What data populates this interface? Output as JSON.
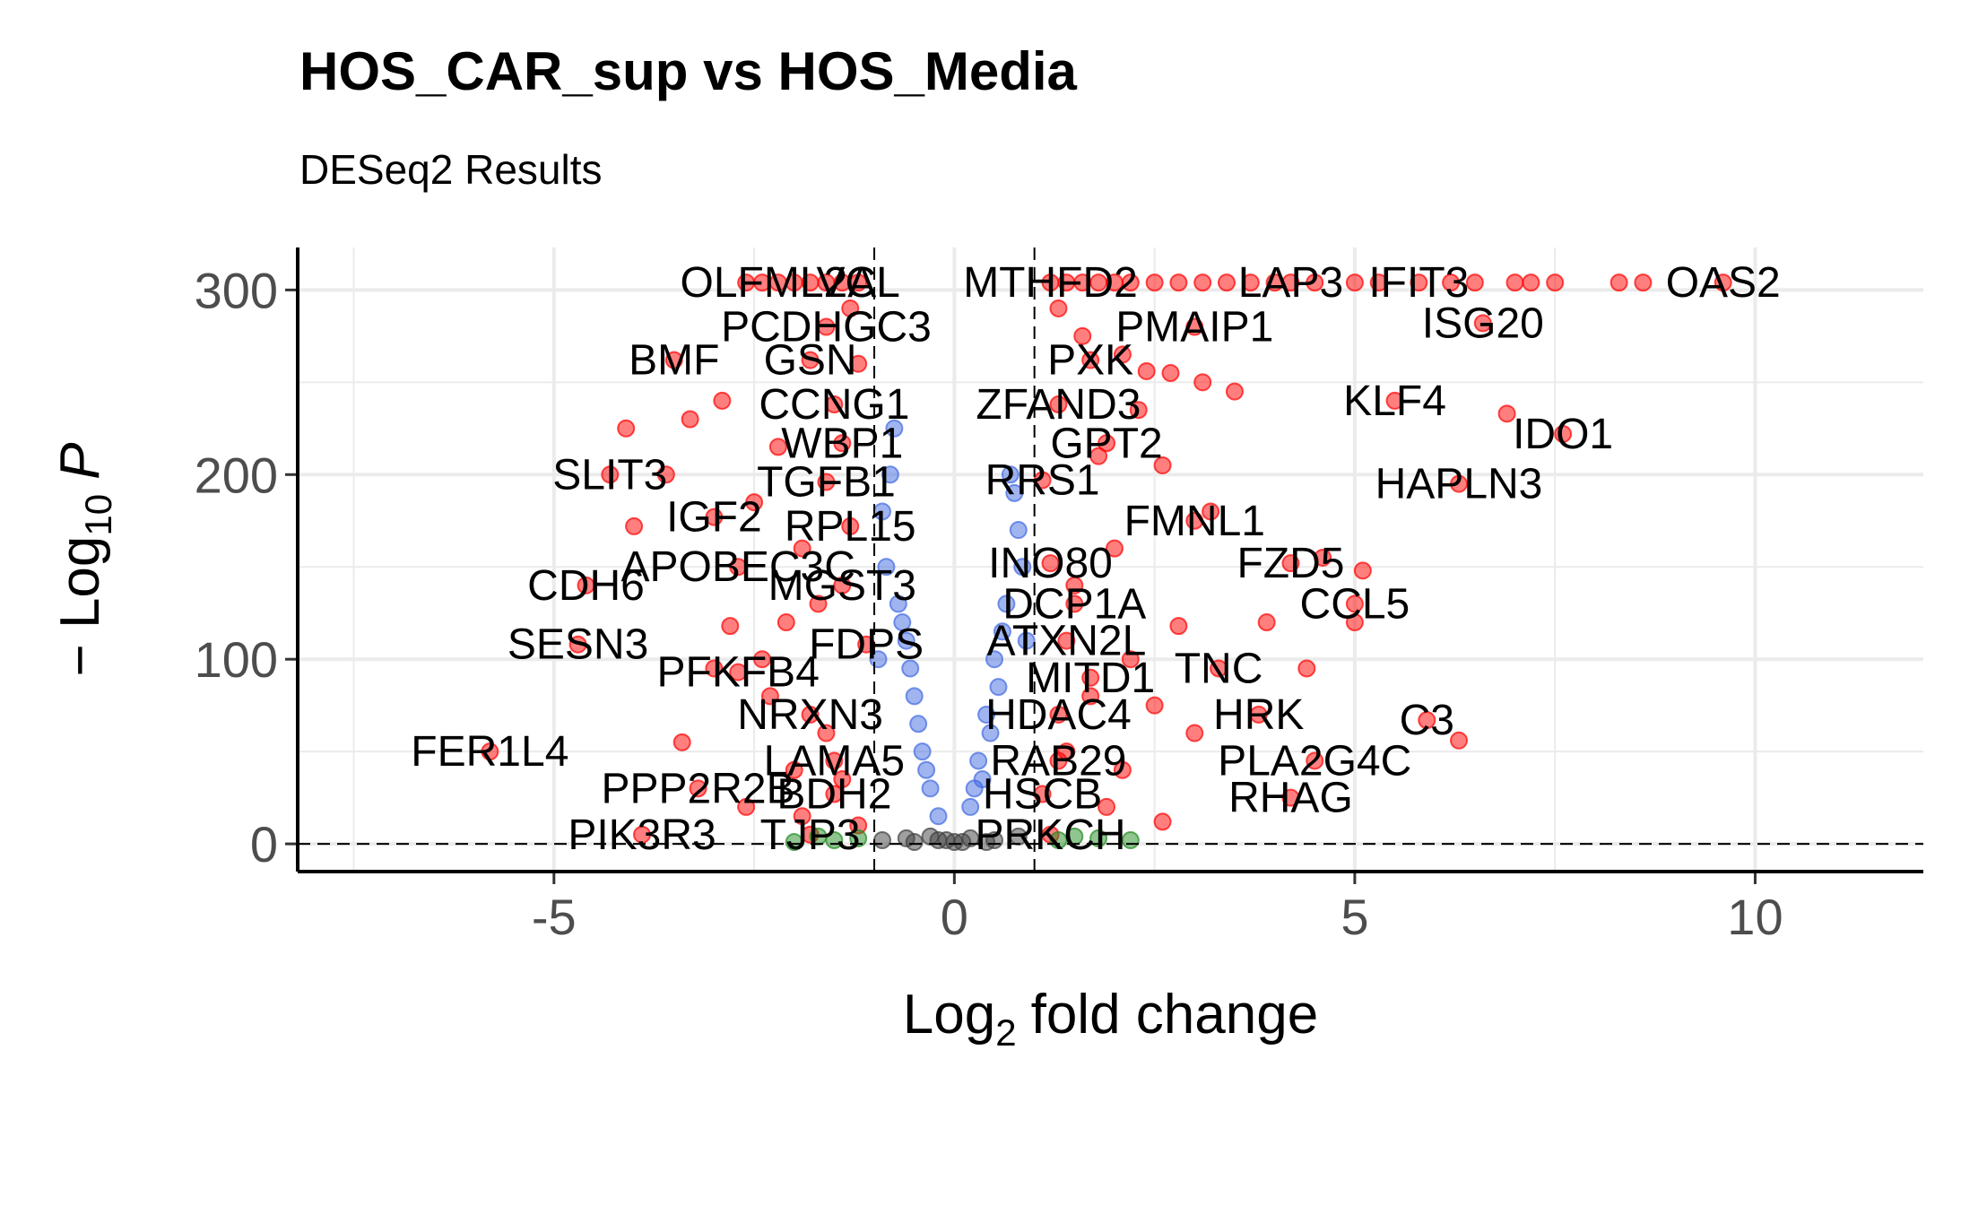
{
  "chart_data": {
    "type": "scatter",
    "title": "HOS_CAR_sup vs HOS_Media",
    "subtitle": "DESeq2 Results",
    "xlabel": [
      "Log",
      "2",
      "fold change"
    ],
    "ylabel": [
      "− Log",
      "10",
      "P"
    ],
    "xlim": [
      -8.2,
      12.1
    ],
    "ylim": [
      -15,
      323
    ],
    "xticks": [
      -5,
      0,
      5,
      10
    ],
    "yticks": [
      0,
      100,
      200,
      300
    ],
    "minor_xticks": [
      -7.5,
      -2.5,
      2.5,
      7.5
    ],
    "minor_yticks": [
      50,
      150,
      250
    ],
    "grid": true,
    "vlines": [
      -1,
      1
    ],
    "hlines": [
      0
    ],
    "opacity": 0.5,
    "series": [
      {
        "color": "#ff0000",
        "labels": [
          "OLFML2A",
          "VCL",
          "MTHFD2",
          "LAP3",
          "IFIT3",
          "OAS2",
          "PCDHGC3",
          "PMAIP1",
          "ISG20",
          "BMF",
          "GSN",
          "PXK",
          "CCNG1",
          "ZFAND3",
          "KLF4",
          "IDO1",
          "WBP1",
          "GPT2",
          "SLIT3",
          "TGFB1",
          "RRS1",
          "HAPLN3",
          "IGF2",
          "RPL15",
          "FMNL1",
          "APOBEC3C",
          "INO80",
          "FZD5",
          "CDH6",
          "MGST3",
          "DCP1A",
          "CCL5",
          "SESN3",
          "FDPS",
          "ATXN2L",
          "TNC",
          "PFKFB4",
          "MITD1",
          "NRXN3",
          "HDAC4",
          "HRK",
          "C3",
          "FER1L4",
          "LAMA5",
          "RAB29",
          "PLA2G4C",
          "PPP2R2B",
          "BDH2",
          "HSCB",
          "RHAG",
          "PIK3R3",
          "TJP3",
          "PRKCH"
        ],
        "x": [
          -2.2,
          -1.2,
          1.2,
          4.2,
          5.8,
          9.6,
          -1.6,
          3.0,
          6.6,
          -3.5,
          -1.8,
          1.7,
          -1.5,
          1.3,
          5.5,
          7.6,
          -1.4,
          1.9,
          -4.3,
          -1.6,
          1.1,
          6.3,
          -3.0,
          -1.3,
          3.0,
          -2.7,
          1.2,
          4.2,
          -4.6,
          -1.4,
          1.5,
          5.0,
          -4.7,
          -1.1,
          1.4,
          3.3,
          -2.7,
          1.7,
          -1.8,
          1.3,
          3.8,
          5.9,
          -5.8,
          -1.5,
          1.3,
          4.5,
          -3.2,
          -1.5,
          1.1,
          4.2,
          -3.9,
          -1.8,
          1.2
        ],
        "values": [
          304,
          304,
          304,
          304,
          304,
          304,
          280,
          280,
          282,
          262,
          262,
          262,
          238,
          238,
          240,
          222,
          217,
          217,
          200,
          196,
          197,
          195,
          177,
          172,
          175,
          150,
          152,
          152,
          140,
          140,
          130,
          130,
          108,
          108,
          110,
          95,
          93,
          90,
          70,
          70,
          70,
          67,
          50,
          45,
          45,
          45,
          30,
          27,
          27,
          25,
          5,
          5,
          5
        ]
      },
      {
        "color": "#ff0000",
        "x": [
          -2.6,
          -2.4,
          -2.0,
          -1.8,
          -1.6,
          -1.4,
          1.4,
          1.6,
          1.8,
          2.0,
          2.2,
          2.5,
          2.8,
          3.1,
          3.4,
          3.7,
          4.0,
          4.5,
          5.0,
          5.3,
          6.2,
          6.5,
          7.0,
          7.2,
          7.5,
          8.3,
          8.6,
          -1.3,
          -1.2,
          -2.9,
          -3.3,
          -4.1,
          -2.2,
          -2.5,
          -1.9,
          -3.6,
          -4.0,
          -2.8,
          -2.1,
          -1.7,
          -2.4,
          -3.0,
          -2.3,
          -1.6,
          -3.4,
          -2.0,
          -1.4,
          -2.6,
          -1.9,
          -1.2,
          1.3,
          1.6,
          2.1,
          2.4,
          2.7,
          3.1,
          3.5,
          2.3,
          1.8,
          2.6,
          3.2,
          4.6,
          5.1,
          5.0,
          6.9,
          2.0,
          1.5,
          2.8,
          3.9,
          2.2,
          1.7,
          2.5,
          3.0,
          1.4,
          2.1,
          4.4,
          6.3,
          1.9,
          2.6
        ],
        "values": [
          304,
          304,
          304,
          304,
          304,
          304,
          304,
          304,
          304,
          304,
          304,
          304,
          304,
          304,
          304,
          304,
          304,
          304,
          304,
          304,
          304,
          304,
          304,
          304,
          304,
          304,
          304,
          290,
          260,
          240,
          230,
          225,
          215,
          185,
          160,
          200,
          172,
          118,
          120,
          130,
          100,
          95,
          80,
          60,
          55,
          40,
          35,
          20,
          15,
          10,
          290,
          275,
          265,
          256,
          255,
          250,
          245,
          235,
          210,
          205,
          180,
          155,
          148,
          120,
          233,
          160,
          140,
          118,
          120,
          100,
          80,
          75,
          60,
          50,
          40,
          95,
          56,
          20,
          12
        ]
      },
      {
        "color": "#4169e1",
        "x": [
          -0.75,
          -0.8,
          -0.9,
          -0.85,
          -0.7,
          -0.6,
          -0.5,
          -0.4,
          -0.3,
          -0.2,
          -0.95,
          -0.65,
          -0.55,
          -0.45,
          -0.35,
          0.7,
          0.75,
          0.8,
          0.65,
          0.5,
          0.4,
          0.3,
          0.2,
          0.9,
          0.6,
          0.55,
          0.45,
          0.35,
          0.85,
          0.25
        ],
        "values": [
          225,
          200,
          180,
          150,
          130,
          110,
          80,
          50,
          30,
          15,
          100,
          120,
          95,
          65,
          40,
          200,
          190,
          170,
          130,
          100,
          70,
          45,
          20,
          110,
          115,
          85,
          60,
          35,
          150,
          30
        ]
      },
      {
        "color": "#404040",
        "x": [
          -0.1,
          0,
          0.2,
          -0.3,
          0.5,
          -0.6,
          0.8,
          -0.9,
          0.1,
          -0.2,
          0.4,
          -0.5
        ],
        "values": [
          2,
          1,
          3,
          4,
          2,
          3,
          4,
          2,
          1,
          2,
          1,
          1
        ]
      },
      {
        "color": "#228b22",
        "x": [
          -1.5,
          -1.2,
          1.3,
          1.8,
          -2.0,
          2.2,
          -1.7,
          1.5
        ],
        "values": [
          2,
          3,
          2,
          3,
          1,
          2,
          4,
          4
        ]
      }
    ]
  }
}
